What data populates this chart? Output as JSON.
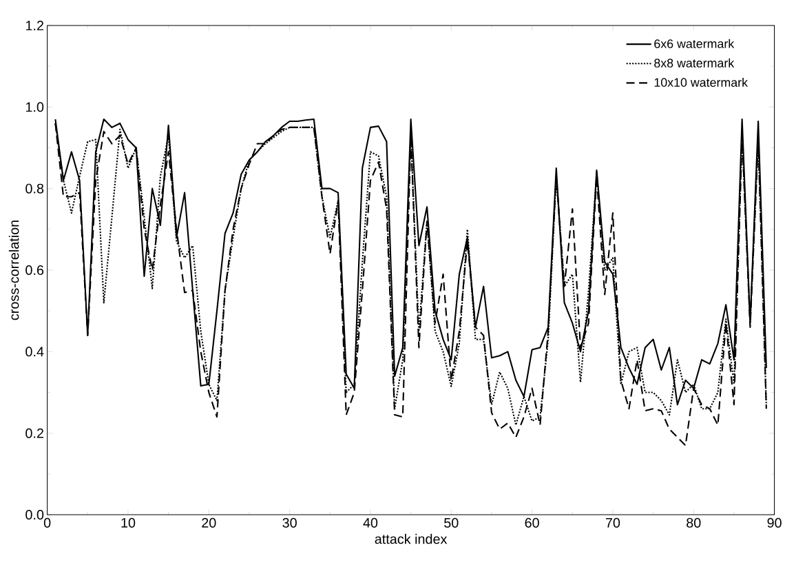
{
  "chart_data": {
    "type": "line",
    "xlabel": "attack index",
    "ylabel": "cross-correlation",
    "x": [
      1,
      2,
      3,
      4,
      5,
      6,
      7,
      8,
      9,
      10,
      11,
      12,
      13,
      14,
      15,
      16,
      17,
      18,
      19,
      20,
      21,
      22,
      23,
      24,
      25,
      26,
      27,
      28,
      29,
      30,
      31,
      32,
      33,
      34,
      35,
      36,
      37,
      38,
      39,
      40,
      41,
      42,
      43,
      44,
      45,
      46,
      47,
      48,
      49,
      50,
      51,
      52,
      53,
      54,
      55,
      56,
      57,
      58,
      59,
      60,
      61,
      62,
      63,
      64,
      65,
      66,
      67,
      68,
      69,
      70,
      71,
      72,
      73,
      74,
      75,
      76,
      77,
      78,
      79,
      80,
      81,
      82,
      83,
      84,
      85,
      86,
      87,
      88,
      89
    ],
    "series": [
      {
        "name": "6x6 watermark",
        "color": "#000000",
        "line_style": "solid",
        "values": [
          0.97,
          0.82,
          0.89,
          0.82,
          0.44,
          0.89,
          0.97,
          0.95,
          0.96,
          0.92,
          0.9,
          0.585,
          0.8,
          0.71,
          0.955,
          0.68,
          0.79,
          0.55,
          0.316,
          0.32,
          0.5,
          0.69,
          0.74,
          0.835,
          0.87,
          0.89,
          0.915,
          0.93,
          0.95,
          0.965,
          0.965,
          0.968,
          0.97,
          0.8,
          0.8,
          0.79,
          0.345,
          0.31,
          0.85,
          0.95,
          0.953,
          0.915,
          0.34,
          0.41,
          0.97,
          0.66,
          0.755,
          0.5,
          0.43,
          0.38,
          0.59,
          0.68,
          0.46,
          0.56,
          0.385,
          0.39,
          0.4,
          0.33,
          0.29,
          0.405,
          0.41,
          0.46,
          0.85,
          0.52,
          0.47,
          0.4,
          0.5,
          0.845,
          0.62,
          0.59,
          0.41,
          0.36,
          0.32,
          0.41,
          0.43,
          0.355,
          0.41,
          0.27,
          0.33,
          0.31,
          0.38,
          0.37,
          0.42,
          0.515,
          0.38,
          0.97,
          0.47,
          0.965,
          0.36
        ]
      },
      {
        "name": "8x8 watermark",
        "color": "#000000",
        "line_style": "dotted",
        "values": [
          0.96,
          0.82,
          0.74,
          0.83,
          0.915,
          0.92,
          0.52,
          0.73,
          0.945,
          0.85,
          0.9,
          0.73,
          0.555,
          0.83,
          0.93,
          0.67,
          0.63,
          0.66,
          0.45,
          0.32,
          0.28,
          0.55,
          0.68,
          0.8,
          0.87,
          0.89,
          0.91,
          0.925,
          0.94,
          0.95,
          0.95,
          0.95,
          0.95,
          0.78,
          0.68,
          0.77,
          0.3,
          0.32,
          0.62,
          0.89,
          0.88,
          0.78,
          0.26,
          0.38,
          0.93,
          0.45,
          0.72,
          0.45,
          0.4,
          0.315,
          0.42,
          0.7,
          0.43,
          0.43,
          0.27,
          0.35,
          0.31,
          0.22,
          0.29,
          0.23,
          0.24,
          0.43,
          0.83,
          0.56,
          0.59,
          0.325,
          0.55,
          0.84,
          0.6,
          0.63,
          0.32,
          0.4,
          0.41,
          0.3,
          0.3,
          0.28,
          0.245,
          0.38,
          0.3,
          0.32,
          0.26,
          0.26,
          0.3,
          0.48,
          0.32,
          0.93,
          0.47,
          0.92,
          0.27
        ]
      },
      {
        "name": "10x10 watermark",
        "color": "#000000",
        "line_style": "dashed",
        "values": [
          0.96,
          0.78,
          0.78,
          0.79,
          0.44,
          0.82,
          0.94,
          0.91,
          0.93,
          0.86,
          0.9,
          0.7,
          0.6,
          0.76,
          0.89,
          0.7,
          0.545,
          0.55,
          0.4,
          0.3,
          0.24,
          0.55,
          0.7,
          0.8,
          0.86,
          0.91,
          0.91,
          0.93,
          0.945,
          0.95,
          0.95,
          0.95,
          0.95,
          0.78,
          0.64,
          0.77,
          0.245,
          0.3,
          0.55,
          0.82,
          0.865,
          0.75,
          0.245,
          0.24,
          0.93,
          0.41,
          0.72,
          0.47,
          0.59,
          0.33,
          0.45,
          0.67,
          0.46,
          0.44,
          0.25,
          0.21,
          0.225,
          0.19,
          0.24,
          0.31,
          0.22,
          0.45,
          0.83,
          0.56,
          0.75,
          0.41,
          0.47,
          0.83,
          0.54,
          0.74,
          0.33,
          0.26,
          0.38,
          0.255,
          0.26,
          0.255,
          0.21,
          0.19,
          0.17,
          0.31,
          0.27,
          0.26,
          0.22,
          0.47,
          0.27,
          0.93,
          0.46,
          0.92,
          0.26
        ]
      }
    ],
    "xlim": [
      0,
      90
    ],
    "xticks": [
      0,
      10,
      20,
      30,
      40,
      50,
      60,
      70,
      80,
      90
    ],
    "ylim": [
      0,
      1.2
    ],
    "yticks": [
      {
        "value": 0,
        "label": "0.0"
      },
      {
        "value": 0.2,
        "label": "0.2"
      },
      {
        "value": 0.4,
        "label": "0.4"
      },
      {
        "value": 0.6,
        "label": "0.6"
      },
      {
        "value": 0.8,
        "label": "0.8"
      },
      {
        "value": 1.0,
        "label": "1.0"
      },
      {
        "value": 1.2,
        "label": "1.2"
      }
    ],
    "legend": "top right",
    "grid": false
  }
}
